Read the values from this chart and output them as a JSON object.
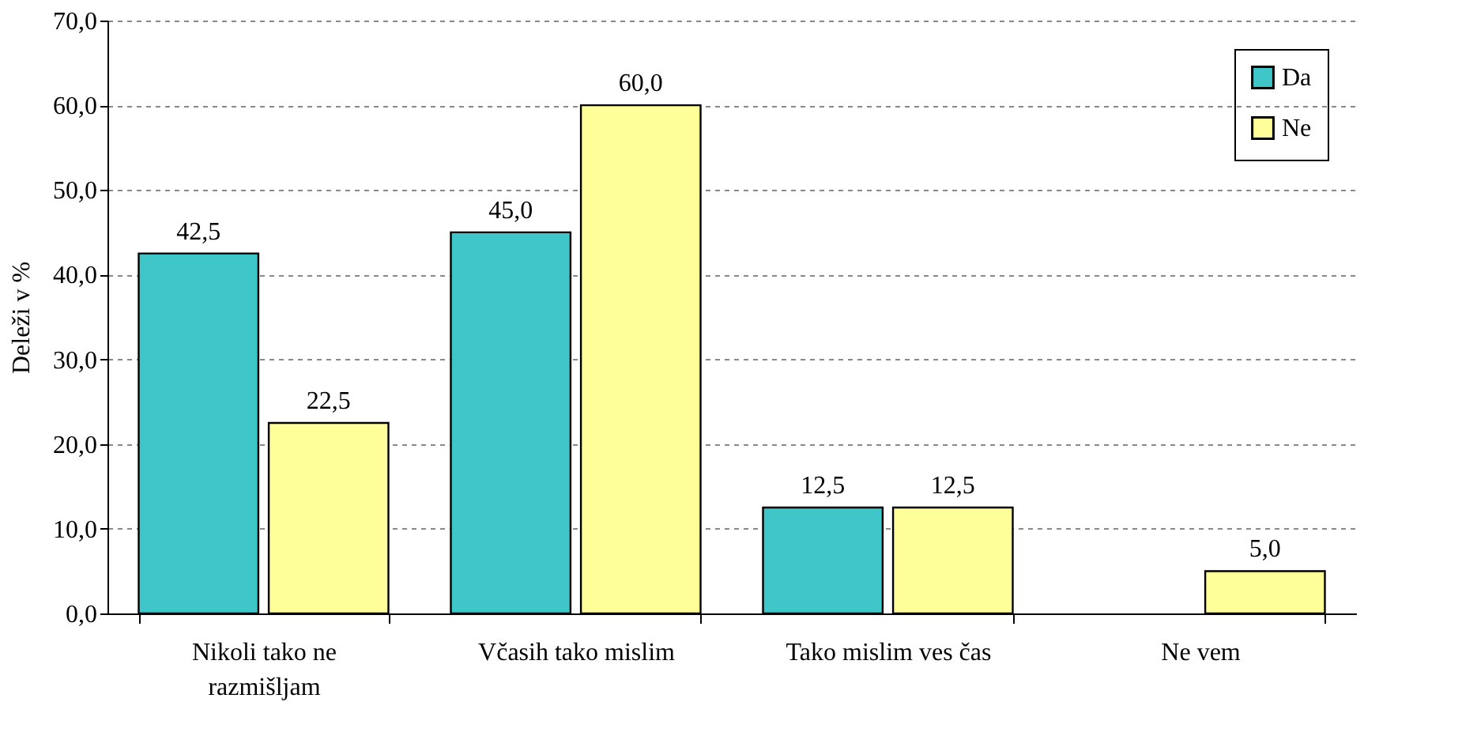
{
  "chart_data": {
    "type": "bar",
    "ylabel": "Deleži v %",
    "categories": [
      "Nikoli tako ne razmišljam",
      "Včasih tako mislim",
      "Tako mislim ves čas",
      "Ne vem"
    ],
    "series": [
      {
        "name": "Da",
        "color": "#3fc6c8",
        "values": [
          42.5,
          45.0,
          12.5,
          null
        ],
        "value_labels": [
          "42,5",
          "45,0",
          "12,5",
          null
        ]
      },
      {
        "name": "Ne",
        "color": "#ffff99",
        "values": [
          22.5,
          60.0,
          12.5,
          5.0
        ],
        "value_labels": [
          "22,5",
          "60,0",
          "12,5",
          "5,0"
        ]
      }
    ],
    "ylim": [
      0,
      70
    ],
    "yticks": [
      {
        "value": 0,
        "label": "0,0"
      },
      {
        "value": 10,
        "label": "10,0"
      },
      {
        "value": 20,
        "label": "20,0"
      },
      {
        "value": 30,
        "label": "30,0"
      },
      {
        "value": 40,
        "label": "40,0"
      },
      {
        "value": 50,
        "label": "50,0"
      },
      {
        "value": 60,
        "label": "60,0"
      },
      {
        "value": 70,
        "label": "70,0"
      }
    ],
    "grid": "y",
    "legend": "top right"
  }
}
